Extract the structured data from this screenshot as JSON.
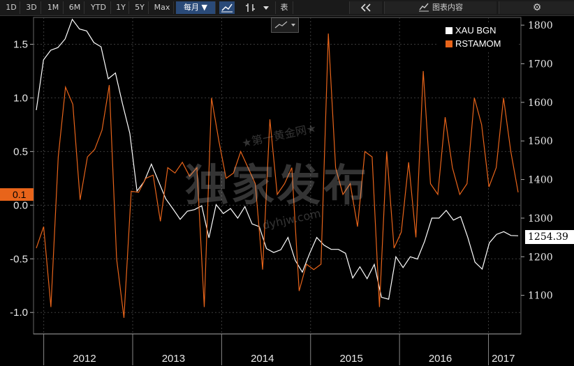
{
  "toolbar": {
    "ranges": [
      "1D",
      "3D",
      "1M",
      "6M",
      "YTD",
      "1Y",
      "5Y",
      "Max"
    ],
    "period": "每月 ▼",
    "table_label": "表",
    "chart_content_label": "图表内容"
  },
  "tags": {
    "left_value": "0.1",
    "right_value": "1254.39"
  },
  "watermark": {
    "main": "独家发布",
    "top": "★第一黄金网★",
    "url": "dyhjw.com"
  },
  "colors": {
    "gold": "#ffffff",
    "sales": "#e8641a",
    "tag": "#e8641a"
  },
  "chart_data": {
    "type": "line",
    "x_labels": [
      "2012",
      "2013",
      "2014",
      "2015",
      "2016",
      "2017"
    ],
    "x_start": "2011-12",
    "x_end": "2017-05",
    "left_axis": {
      "ticks": [
        "1.5",
        "1.0",
        "0.5",
        "0.0",
        "-0.5",
        "-1.0"
      ],
      "ylim": [
        -1.2,
        1.75
      ]
    },
    "right_axis": {
      "ticks": [
        "1800",
        "1700",
        "1600",
        "1500",
        "1400",
        "1300",
        "1200",
        "1100"
      ],
      "ylim": [
        1000,
        1820
      ]
    },
    "series": [
      {
        "name": "XAU BGN",
        "axis": "right",
        "values": [
          1580,
          1710,
          1735,
          1742,
          1764,
          1815,
          1790,
          1785,
          1755,
          1744,
          1661,
          1676,
          1595,
          1520,
          1370,
          1395,
          1440,
          1395,
          1350,
          1324,
          1297,
          1318,
          1322,
          1332,
          1249,
          1335,
          1312,
          1325,
          1300,
          1330,
          1285,
          1278,
          1221,
          1211,
          1218,
          1250,
          1191,
          1160,
          1208,
          1250,
          1230,
          1219,
          1219,
          1209,
          1145,
          1174,
          1143,
          1180,
          1095,
          1090,
          1200,
          1172,
          1200,
          1194,
          1240,
          1300,
          1300,
          1320,
          1295,
          1304,
          1250,
          1186,
          1168,
          1236,
          1258,
          1265,
          1255,
          1254.39
        ]
      },
      {
        "name": "RSTAMOM",
        "axis": "left",
        "values": [
          -0.4,
          -0.2,
          -0.95,
          0.45,
          1.1,
          0.94,
          0.05,
          0.45,
          0.52,
          0.7,
          1.12,
          -0.5,
          -1.05,
          0.13,
          0.12,
          0.25,
          0.28,
          -0.15,
          0.35,
          0.3,
          0.4,
          0.27,
          0.35,
          -0.95,
          1.0,
          0.6,
          0.25,
          0.3,
          0.5,
          0.35,
          0.2,
          -0.6,
          0.8,
          0.1,
          0.2,
          0.35,
          -0.8,
          -0.55,
          -0.6,
          -0.55,
          1.6,
          0.35,
          0.1,
          0.2,
          -0.2,
          0.5,
          0.45,
          -0.95,
          0.5,
          -0.4,
          -0.25,
          0.4,
          -0.3,
          1.25,
          0.2,
          0.1,
          0.82,
          0.35,
          0.1,
          0.2,
          1.0,
          0.75,
          0.17,
          0.35,
          1.0,
          0.5,
          0.12
        ]
      }
    ]
  }
}
